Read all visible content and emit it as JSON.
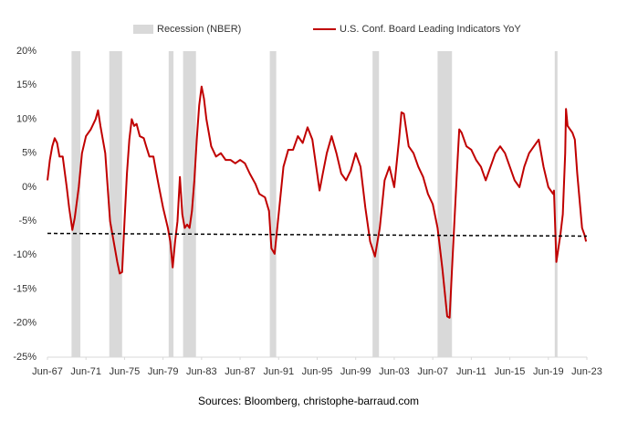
{
  "chart_data": {
    "type": "line",
    "source": "Sources: Bloomberg, christophe-barraud.com",
    "recessions": {
      "name": "Recession (NBER)",
      "color": "#d9d9d9",
      "periods": [
        [
          "1969-12",
          "1970-11"
        ],
        [
          "1973-11",
          "1975-03"
        ],
        [
          "1980-01",
          "1980-07"
        ],
        [
          "1981-07",
          "1982-11"
        ],
        [
          "1990-07",
          "1991-03"
        ],
        [
          "2001-03",
          "2001-11"
        ],
        [
          "2007-12",
          "2009-06"
        ],
        [
          "2020-02",
          "2020-04"
        ]
      ]
    },
    "x": [
      "1967-06",
      "1967-09",
      "1967-12",
      "1968-03",
      "1968-06",
      "1968-09",
      "1969-01",
      "1969-06",
      "1969-09",
      "1970-01",
      "1970-04",
      "1970-09",
      "1971-01",
      "1971-06",
      "1971-12",
      "1972-06",
      "1972-09",
      "1972-12",
      "1973-06",
      "1973-09",
      "1973-12",
      "1974-03",
      "1974-09",
      "1974-12",
      "1975-03",
      "1975-06",
      "1975-09",
      "1975-12",
      "1976-03",
      "1976-06",
      "1976-09",
      "1977-01",
      "1977-06",
      "1977-09",
      "1978-01",
      "1978-06",
      "1978-09",
      "1979-01",
      "1979-06",
      "1979-12",
      "1980-03",
      "1980-06",
      "1980-09",
      "1980-12",
      "1981-03",
      "1981-06",
      "1981-09",
      "1981-12",
      "1982-03",
      "1982-06",
      "1982-09",
      "1982-12",
      "1983-03",
      "1983-06",
      "1983-09",
      "1983-12",
      "1984-06",
      "1984-12",
      "1985-06",
      "1985-12",
      "1986-06",
      "1986-12",
      "1987-06",
      "1987-12",
      "1988-06",
      "1989-01",
      "1989-06",
      "1990-01",
      "1990-06",
      "1990-09",
      "1991-01",
      "1991-06",
      "1991-12",
      "1992-06",
      "1992-12",
      "1993-06",
      "1993-12",
      "1994-06",
      "1994-12",
      "1995-06",
      "1995-09",
      "1996-01",
      "1996-06",
      "1996-12",
      "1997-06",
      "1997-12",
      "1998-06",
      "1998-12",
      "1999-06",
      "1999-12",
      "2000-06",
      "2000-12",
      "2001-06",
      "2001-12",
      "2002-06",
      "2002-12",
      "2003-06",
      "2003-12",
      "2004-03",
      "2004-06",
      "2004-12",
      "2005-06",
      "2005-12",
      "2006-06",
      "2006-12",
      "2007-06",
      "2007-12",
      "2008-06",
      "2008-12",
      "2009-03",
      "2009-06",
      "2009-12",
      "2010-03",
      "2010-06",
      "2010-12",
      "2011-06",
      "2011-12",
      "2012-06",
      "2012-12",
      "2013-06",
      "2013-12",
      "2014-06",
      "2014-12",
      "2015-06",
      "2015-12",
      "2016-06",
      "2016-12",
      "2017-06",
      "2017-12",
      "2018-06",
      "2018-12",
      "2019-06",
      "2019-12",
      "2020-01",
      "2020-04",
      "2020-09",
      "2020-12",
      "2021-03",
      "2021-04",
      "2021-06",
      "2021-12",
      "2022-03",
      "2022-06",
      "2022-09",
      "2022-12",
      "2023-03",
      "2023-05"
    ],
    "series": [
      {
        "name": "U.S. Conf. Board Leading Indicators YoY",
        "color": "#c00000",
        "values": [
          1,
          4,
          6,
          7.2,
          6.5,
          4.5,
          4.5,
          0,
          -3,
          -6.3,
          -4.5,
          0,
          5,
          7.5,
          8.5,
          10,
          11.3,
          9,
          5,
          0,
          -5,
          -7,
          -11,
          -12.7,
          -12.5,
          -5,
          2,
          7,
          10,
          9,
          9.3,
          7.5,
          7.2,
          6,
          4.5,
          4.5,
          2.5,
          0,
          -3,
          -6,
          -8,
          -11.8,
          -8,
          -5,
          1.5,
          -4,
          -6,
          -5.5,
          -6,
          -3.5,
          1,
          7,
          12,
          14.8,
          13,
          10,
          6,
          4.5,
          5,
          4,
          4,
          3.5,
          4,
          3.5,
          2,
          0.5,
          -1,
          -1.5,
          -3.5,
          -9,
          -9.8,
          -4,
          3,
          5.5,
          5.5,
          7.5,
          6.5,
          8.8,
          7,
          2,
          -0.5,
          2,
          5,
          7.5,
          5,
          2,
          1,
          2.5,
          5,
          3,
          -3,
          -8,
          -10.2,
          -6,
          1,
          3,
          0,
          7,
          11,
          10.8,
          6,
          5,
          3,
          1.5,
          -1,
          -2.5,
          -6,
          -12,
          -19,
          -19.2,
          -12,
          2,
          8.5,
          8,
          6,
          5.5,
          4,
          3,
          1,
          3,
          5,
          6,
          5,
          3,
          1,
          0,
          3,
          5,
          6,
          7,
          3,
          0,
          -1,
          -0.5,
          -11,
          -7,
          -4,
          5,
          11.5,
          9,
          8,
          7,
          2,
          -2,
          -6,
          -7,
          -8
        ]
      }
    ],
    "reference_line": {
      "x": [
        "1967-06",
        "2023-06"
      ],
      "values": [
        -6.8,
        -7.2
      ],
      "color": "#000000"
    },
    "xlim": [
      "1967-06",
      "2023-06"
    ],
    "xticks": [
      {
        "value": "1967-06",
        "label": "Jun-67"
      },
      {
        "value": "1971-06",
        "label": "Jun-71"
      },
      {
        "value": "1975-06",
        "label": "Jun-75"
      },
      {
        "value": "1979-06",
        "label": "Jun-79"
      },
      {
        "value": "1983-06",
        "label": "Jun-83"
      },
      {
        "value": "1987-06",
        "label": "Jun-87"
      },
      {
        "value": "1991-06",
        "label": "Jun-91"
      },
      {
        "value": "1995-06",
        "label": "Jun-95"
      },
      {
        "value": "1999-06",
        "label": "Jun-99"
      },
      {
        "value": "2003-06",
        "label": "Jun-03"
      },
      {
        "value": "2007-06",
        "label": "Jun-07"
      },
      {
        "value": "2011-06",
        "label": "Jun-11"
      },
      {
        "value": "2015-06",
        "label": "Jun-15"
      },
      {
        "value": "2019-06",
        "label": "Jun-19"
      },
      {
        "value": "2023-06",
        "label": "Jun-23"
      }
    ],
    "ylim": [
      -25,
      20
    ],
    "yticks": [
      {
        "value": -25,
        "label": "-25%"
      },
      {
        "value": -20,
        "label": "-20%"
      },
      {
        "value": -15,
        "label": "-15%"
      },
      {
        "value": -10,
        "label": "-10%"
      },
      {
        "value": -5,
        "label": "-5%"
      },
      {
        "value": 0,
        "label": "0%"
      },
      {
        "value": 5,
        "label": "5%"
      },
      {
        "value": 10,
        "label": "10%"
      },
      {
        "value": 15,
        "label": "15%"
      },
      {
        "value": 20,
        "label": "20%"
      }
    ],
    "grid": false
  }
}
